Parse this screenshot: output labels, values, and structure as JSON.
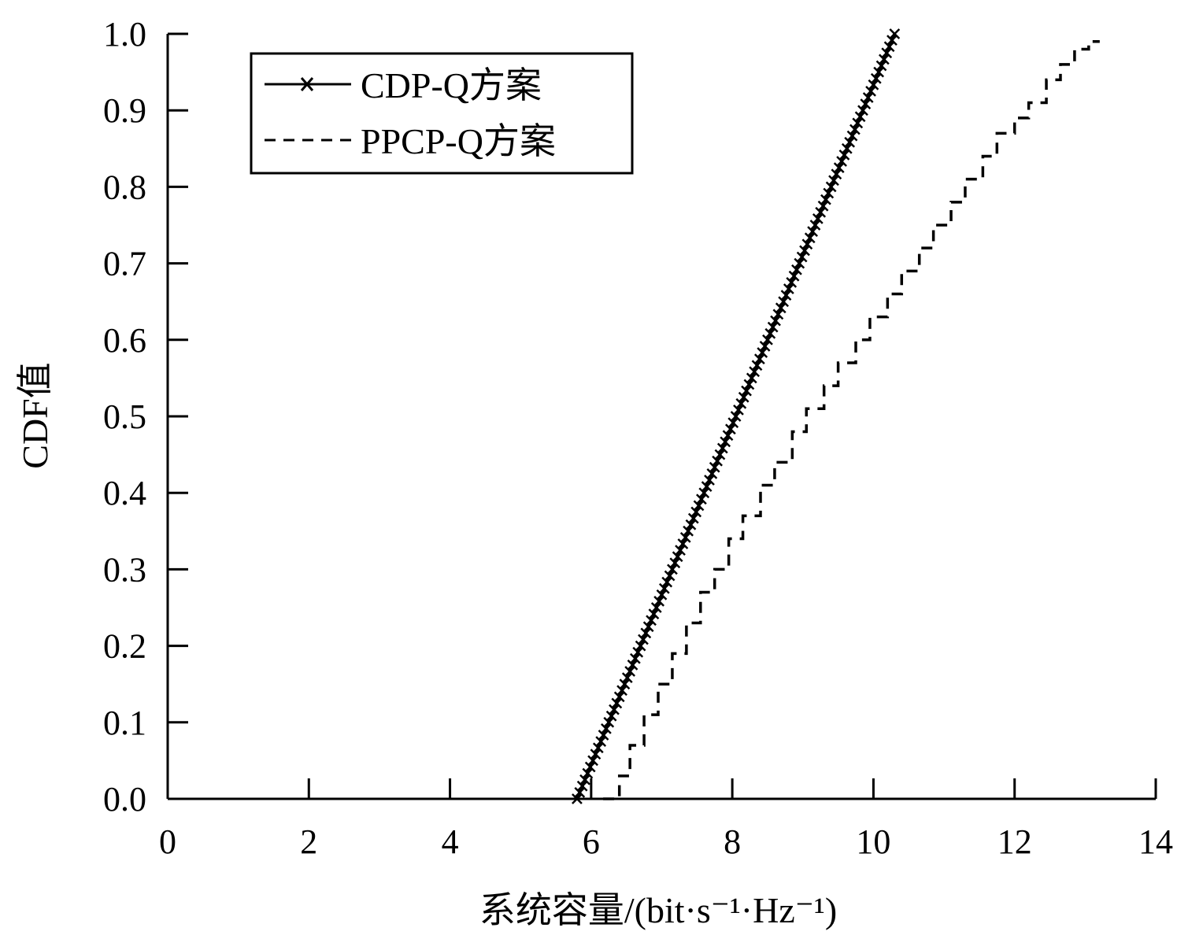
{
  "chart_data": {
    "type": "line",
    "xlabel": "系统容量/(bit·s⁻¹·Hz⁻¹)",
    "ylabel": "CDF值",
    "xlim": [
      0,
      14
    ],
    "ylim": [
      0,
      1.0
    ],
    "x_ticks": [
      "0",
      "2",
      "4",
      "6",
      "8",
      "10",
      "12",
      "14"
    ],
    "y_ticks": [
      "0.0",
      "0.1",
      "0.2",
      "0.3",
      "0.4",
      "0.5",
      "0.6",
      "0.7",
      "0.8",
      "0.9",
      "1.0"
    ],
    "legend_position": "top-left",
    "grid": false,
    "series": [
      {
        "name": "CDP-Q方案",
        "style": "solid-x-markers",
        "color": "#000000",
        "x": [
          5.8,
          10.3
        ],
        "y": [
          0.0,
          1.0
        ]
      },
      {
        "name": "PPCP-Q方案",
        "style": "dashed-step",
        "color": "#000000",
        "x": [
          6.17,
          6.4,
          6.55,
          6.75,
          6.95,
          7.15,
          7.35,
          7.55,
          7.75,
          7.95,
          8.15,
          8.4,
          8.6,
          8.85,
          9.05,
          9.3,
          9.5,
          9.75,
          9.95,
          10.2,
          10.4,
          10.65,
          10.85,
          11.1,
          11.3,
          11.55,
          11.75,
          12.0,
          12.2,
          12.45,
          12.65,
          12.85,
          13.05
        ],
        "y": [
          0.0,
          0.03,
          0.07,
          0.11,
          0.15,
          0.19,
          0.23,
          0.27,
          0.3,
          0.34,
          0.37,
          0.41,
          0.44,
          0.48,
          0.51,
          0.54,
          0.57,
          0.6,
          0.63,
          0.66,
          0.69,
          0.72,
          0.75,
          0.78,
          0.81,
          0.84,
          0.87,
          0.89,
          0.91,
          0.94,
          0.96,
          0.98,
          0.99
        ]
      }
    ]
  }
}
